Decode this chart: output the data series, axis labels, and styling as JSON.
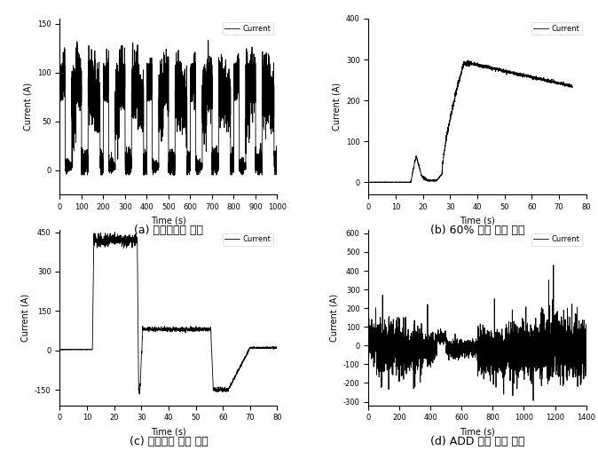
{
  "subplots": [
    {
      "label": "(a) 저소음주행 패턴",
      "xlabel": "Time (s)",
      "ylabel": "Current (A)",
      "xlim": [
        0,
        1000
      ],
      "ylim": [
        -25,
        155
      ],
      "yticks": [
        0,
        50,
        100,
        150
      ],
      "xticks": [
        0,
        100,
        200,
        300,
        400,
        500,
        600,
        700,
        800,
        900,
        1000
      ],
      "legend": "Current"
    },
    {
      "label": "(b) 60% 등판 주행 패턴",
      "xlabel": "Time (s)",
      "ylabel": "Current (A)",
      "xlim": [
        0,
        80
      ],
      "ylim": [
        -30,
        400
      ],
      "yticks": [
        0,
        100,
        200,
        300,
        400
      ],
      "xticks": [
        0,
        10,
        20,
        30,
        40,
        50,
        60,
        70,
        80
      ],
      "legend": "Current"
    },
    {
      "label": "(c) 최대가속 주행 패턴",
      "xlabel": "Time (s)",
      "ylabel": "Current (A)",
      "xlim": [
        0,
        80
      ],
      "ylim": [
        -210,
        460
      ],
      "yticks": [
        -150,
        0,
        150,
        300,
        450
      ],
      "xticks": [
        0,
        10,
        20,
        30,
        40,
        50,
        60,
        70,
        80
      ],
      "legend": "Current"
    },
    {
      "label": "(d) ADD 연비 주행 패턴",
      "xlabel": "Time (s)",
      "ylabel": "Current (A)",
      "xlim": [
        0,
        1400
      ],
      "ylim": [
        -320,
        620
      ],
      "yticks": [
        -300,
        -200,
        -100,
        0,
        100,
        200,
        300,
        400,
        500,
        600
      ],
      "xticks": [
        0,
        200,
        400,
        600,
        800,
        1000,
        1200,
        1400
      ],
      "legend": "Current"
    }
  ],
  "line_color": "black",
  "line_width": 0.6,
  "bg_color": "white",
  "tick_fontsize": 6,
  "label_fontsize": 7,
  "caption_fontsize": 9,
  "legend_fontsize": 6
}
